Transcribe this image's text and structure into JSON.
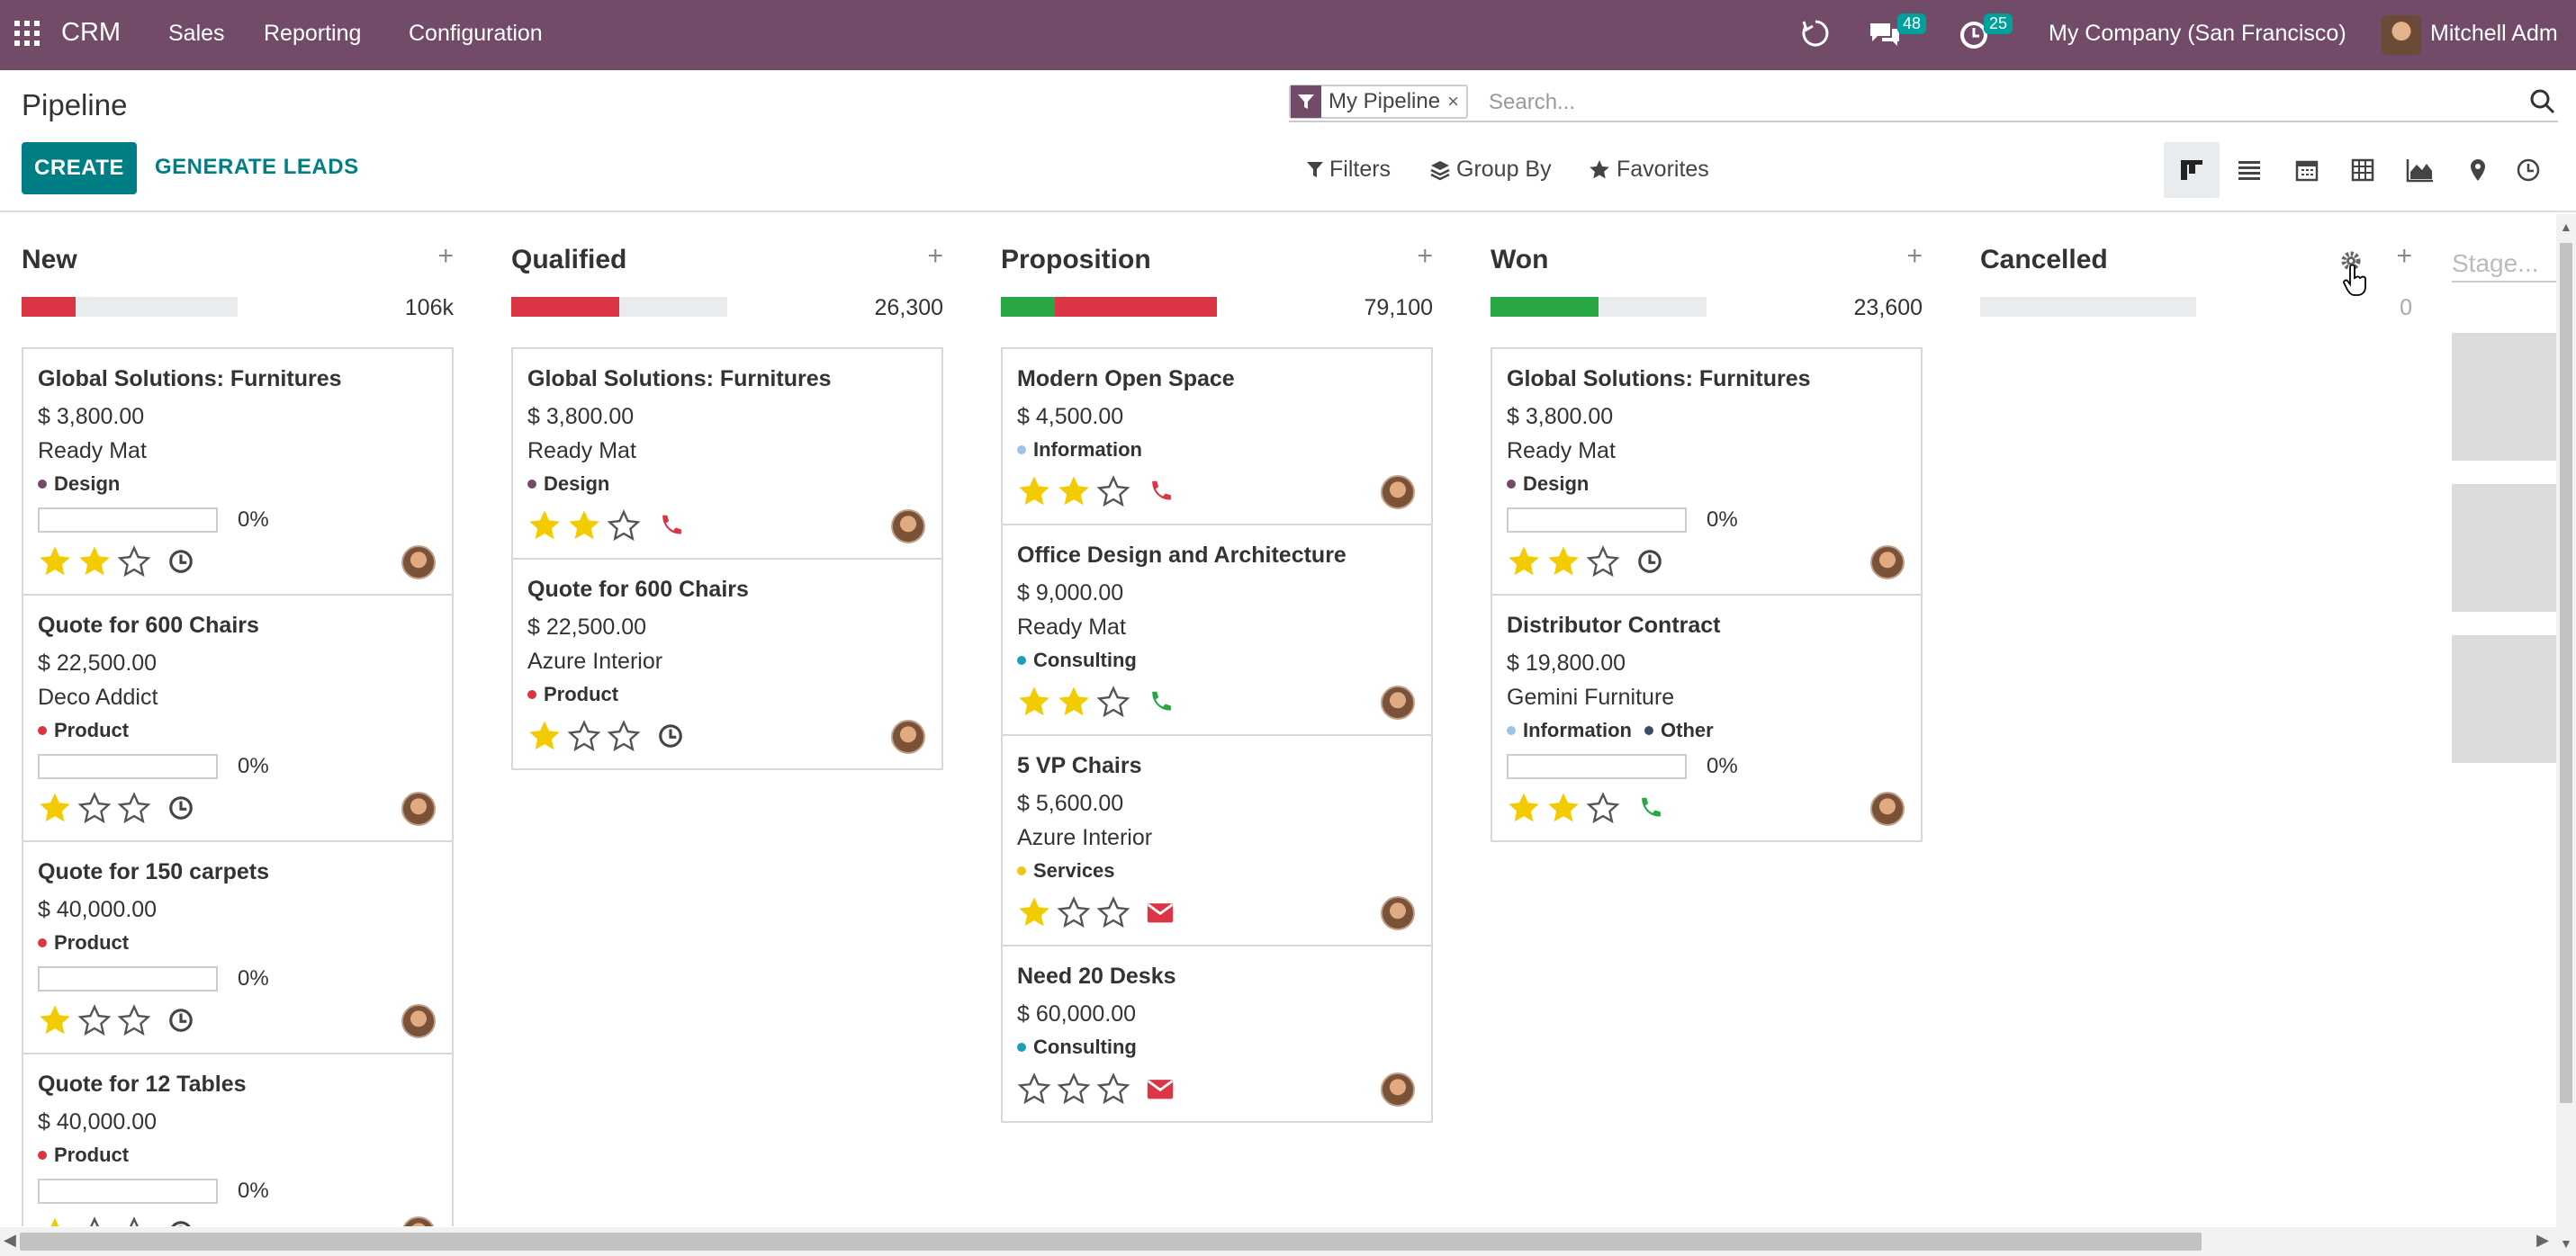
{
  "navbar": {
    "brand": "CRM",
    "menu": [
      "Sales",
      "Reporting",
      "Configuration"
    ],
    "messages_count": "48",
    "activities_count": "25",
    "company": "My Company (San Francisco)",
    "user": "Mitchell Adm"
  },
  "control": {
    "title": "Pipeline",
    "create_label": "CREATE",
    "generate_label": "GENERATE LEADS",
    "facet_label": "My Pipeline",
    "facet_remove": "×",
    "search_placeholder": "Search...",
    "filters_label": "Filters",
    "groupby_label": "Group By",
    "favorites_label": "Favorites",
    "views": [
      "kanban",
      "list",
      "calendar",
      "pivot",
      "graph",
      "map",
      "activity"
    ]
  },
  "columns": [
    {
      "title": "New",
      "total": "106k",
      "progress": {
        "won": 0,
        "lost": 0.25,
        "other": 0
      },
      "cards": [
        {
          "name": "Global Solutions: Furnitures",
          "amount": "$ 3,800.00",
          "partner": "Ready Mat",
          "tags": [
            {
              "label": "Design",
              "color": "#714b67"
            }
          ],
          "probability": "0%",
          "stars": 2,
          "activity": "clock"
        },
        {
          "name": "Quote for 600 Chairs",
          "amount": "$ 22,500.00",
          "partner": "Deco Addict",
          "tags": [
            {
              "label": "Product",
              "color": "#dc3545"
            }
          ],
          "probability": "0%",
          "stars": 1,
          "activity": "clock"
        },
        {
          "name": "Quote for 150 carpets",
          "amount": "$ 40,000.00",
          "partner": "",
          "tags": [
            {
              "label": "Product",
              "color": "#dc3545"
            }
          ],
          "probability": "0%",
          "stars": 1,
          "activity": "clock"
        },
        {
          "name": "Quote for 12 Tables",
          "amount": "$ 40,000.00",
          "partner": "",
          "tags": [
            {
              "label": "Product",
              "color": "#dc3545"
            }
          ],
          "probability": "0%",
          "stars": 1,
          "activity": "clock"
        }
      ]
    },
    {
      "title": "Qualified",
      "total": "26,300",
      "progress": {
        "won": 0,
        "lost": 0.5,
        "other": 0
      },
      "cards": [
        {
          "name": "Global Solutions: Furnitures",
          "amount": "$ 3,800.00",
          "partner": "Ready Mat",
          "tags": [
            {
              "label": "Design",
              "color": "#714b67"
            }
          ],
          "probability": "",
          "stars": 2,
          "activity": "phone-red"
        },
        {
          "name": "Quote for 600 Chairs",
          "amount": "$ 22,500.00",
          "partner": "Azure Interior",
          "tags": [
            {
              "label": "Product",
              "color": "#dc3545"
            }
          ],
          "probability": "",
          "stars": 1,
          "activity": "clock"
        }
      ]
    },
    {
      "title": "Proposition",
      "total": "79,100",
      "progress": {
        "won": 0.25,
        "lost": 0.75,
        "other": 0
      },
      "cards": [
        {
          "name": "Modern Open Space",
          "amount": "$ 4,500.00",
          "partner": "",
          "tags": [
            {
              "label": "Information",
              "color": "#9ec5e8"
            }
          ],
          "probability": "",
          "stars": 2,
          "activity": "phone-red"
        },
        {
          "name": "Office Design and Architecture",
          "amount": "$ 9,000.00",
          "partner": "Ready Mat",
          "tags": [
            {
              "label": "Consulting",
              "color": "#17a2b8"
            }
          ],
          "probability": "",
          "stars": 2,
          "activity": "phone-green"
        },
        {
          "name": "5 VP Chairs",
          "amount": "$ 5,600.00",
          "partner": "Azure Interior",
          "tags": [
            {
              "label": "Services",
              "color": "#f0c419"
            }
          ],
          "probability": "",
          "stars": 1,
          "activity": "email-red"
        },
        {
          "name": "Need 20 Desks",
          "amount": "$ 60,000.00",
          "partner": "",
          "tags": [
            {
              "label": "Consulting",
              "color": "#17a2b8"
            }
          ],
          "probability": "",
          "stars": 0,
          "activity": "email-red"
        }
      ]
    },
    {
      "title": "Won",
      "total": "23,600",
      "progress": {
        "won": 0.5,
        "lost": 0,
        "other": 0
      },
      "cards": [
        {
          "name": "Global Solutions: Furnitures",
          "amount": "$ 3,800.00",
          "partner": "Ready Mat",
          "tags": [
            {
              "label": "Design",
              "color": "#714b67"
            }
          ],
          "probability": "0%",
          "stars": 2,
          "activity": "clock"
        },
        {
          "name": "Distributor Contract",
          "amount": "$ 19,800.00",
          "partner": "Gemini Furniture",
          "tags": [
            {
              "label": "Information",
              "color": "#9ec5e8"
            },
            {
              "label": "Other",
              "color": "#3d4a6b"
            }
          ],
          "probability": "0%",
          "stars": 2,
          "activity": "phone-green"
        }
      ]
    },
    {
      "title": "Cancelled",
      "total": "0",
      "progress": {
        "won": 0,
        "lost": 0,
        "other": 0
      },
      "cards": []
    }
  ],
  "new_stage_placeholder": "Stage...",
  "colors": {
    "brand": "#714b67",
    "accent": "#017e84",
    "won": "#28a745",
    "lost": "#dc3545",
    "star": "#f3cc00"
  }
}
